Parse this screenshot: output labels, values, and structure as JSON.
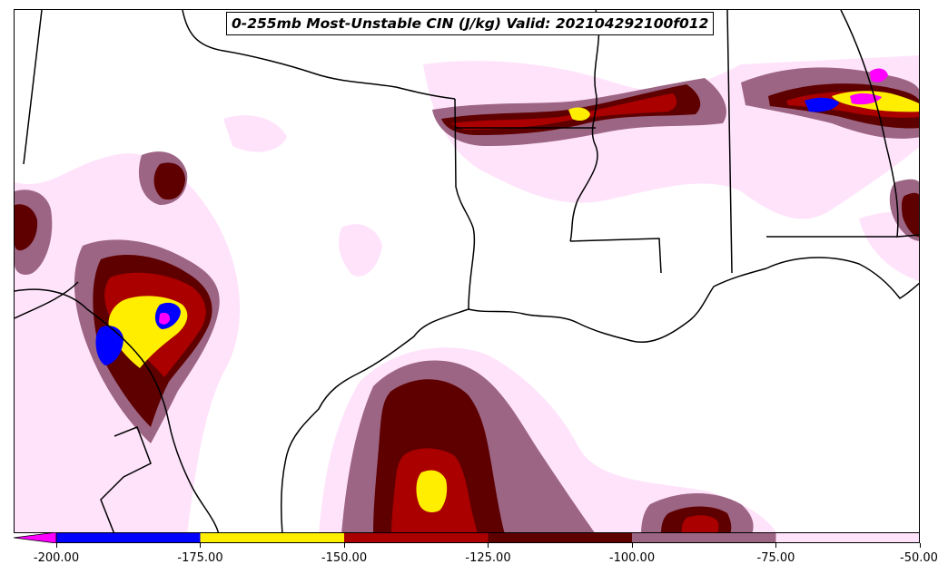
{
  "title": "0-255mb Most-Unstable CIN (J/kg) Valid: 202104292100f012",
  "colorbar": {
    "extend": "min",
    "under_color": "#ff00ff",
    "bins": [
      {
        "from": -200,
        "to": -175,
        "color": "#0000ff"
      },
      {
        "from": -175,
        "to": -150,
        "color": "#ffee00"
      },
      {
        "from": -150,
        "to": -125,
        "color": "#aa0000"
      },
      {
        "from": -125,
        "to": -100,
        "color": "#5e0000"
      },
      {
        "from": -100,
        "to": -75,
        "color": "#9c6584"
      },
      {
        "from": -75,
        "to": -50,
        "color": "#ffe3fb"
      }
    ],
    "tick_labels": [
      "-200.00",
      "-175.00",
      "-150.00",
      "-125.00",
      "-100.00",
      "-75.00",
      "-50.00"
    ]
  },
  "map": {
    "region": "US Gulf Coast (Texas to Georgia) and northern Mexico",
    "boundary_color": "#000000"
  }
}
